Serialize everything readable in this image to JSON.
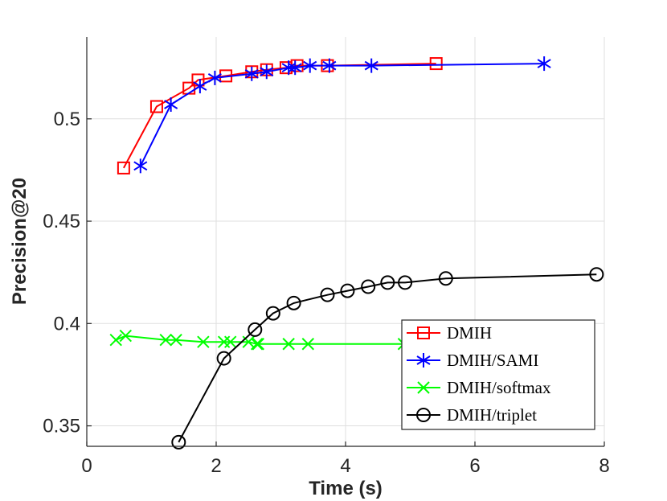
{
  "chart_data": {
    "type": "line",
    "title": "",
    "xlabel": "Time (s)",
    "ylabel": "Precision@20",
    "xlim": [
      0,
      8
    ],
    "ylim": [
      0.34,
      0.54
    ],
    "grid": true,
    "legend_position": "bottom-right",
    "x_ticks": [
      {
        "value": 0,
        "label": "0"
      },
      {
        "value": 2,
        "label": "2"
      },
      {
        "value": 4,
        "label": "4"
      },
      {
        "value": 6,
        "label": "6"
      },
      {
        "value": 8,
        "label": "8"
      }
    ],
    "y_ticks": [
      {
        "value": 0.35,
        "label": "0.35"
      },
      {
        "value": 0.4,
        "label": "0.4"
      },
      {
        "value": 0.45,
        "label": "0.45"
      },
      {
        "value": 0.5,
        "label": "0.5"
      }
    ],
    "series": [
      {
        "name": "DMIH",
        "color": "#ff0000",
        "marker": "square",
        "x": [
          0.57,
          1.08,
          1.58,
          1.72,
          2.15,
          2.55,
          2.78,
          3.08,
          3.25,
          3.72,
          5.4
        ],
        "y": [
          0.476,
          0.506,
          0.515,
          0.519,
          0.521,
          0.523,
          0.524,
          0.525,
          0.526,
          0.526,
          0.527
        ]
      },
      {
        "name": "DMIH/SAMI",
        "color": "#0000ff",
        "marker": "asterisk",
        "x": [
          0.83,
          1.3,
          1.75,
          1.98,
          2.55,
          2.78,
          3.12,
          3.22,
          3.45,
          3.75,
          4.4,
          7.07
        ],
        "y": [
          0.477,
          0.507,
          0.516,
          0.52,
          0.522,
          0.523,
          0.525,
          0.525,
          0.526,
          0.526,
          0.526,
          0.527
        ]
      },
      {
        "name": "DMIH/softmax",
        "color": "#00ff00",
        "marker": "x",
        "x": [
          0.45,
          0.6,
          1.22,
          1.38,
          1.8,
          2.12,
          2.22,
          2.5,
          2.63,
          2.65,
          3.12,
          3.42,
          4.9
        ],
        "y": [
          0.392,
          0.394,
          0.392,
          0.392,
          0.391,
          0.391,
          0.391,
          0.391,
          0.39,
          0.39,
          0.39,
          0.39,
          0.39
        ]
      },
      {
        "name": "DMIH/triplet",
        "color": "#000000",
        "marker": "circle",
        "x": [
          1.42,
          2.12,
          2.6,
          2.88,
          3.2,
          3.72,
          4.03,
          4.35,
          4.65,
          4.92,
          5.55,
          7.88
        ],
        "y": [
          0.342,
          0.383,
          0.397,
          0.405,
          0.41,
          0.414,
          0.416,
          0.418,
          0.42,
          0.42,
          0.422,
          0.424
        ]
      }
    ]
  }
}
